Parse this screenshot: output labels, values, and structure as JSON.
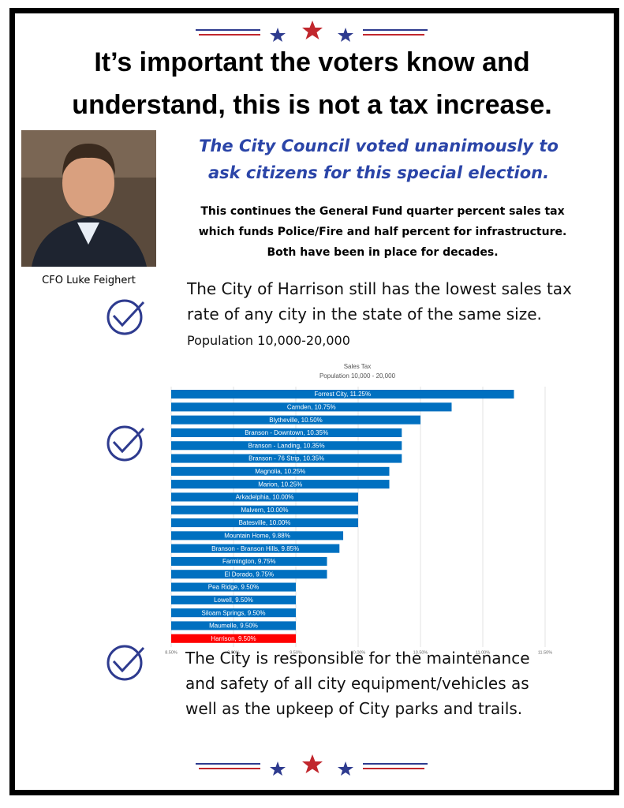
{
  "header": {
    "title_lines": [
      "It’s important the voters know and",
      "understand, this is not a tax increase."
    ]
  },
  "subtitle_lines": [
    "The City Council voted unanimously to",
    "ask citizens for this special election."
  ],
  "intro_lines": [
    "This continues the General Fund quarter percent sales tax",
    "which funds Police/Fire and half percent for infrastructure.",
    "Both have been in place for decades."
  ],
  "photo_caption": "CFO Luke Feighert",
  "points": [
    {
      "text": "The City of Harrison still has the lowest sales tax rate of any city in the state of the same size.",
      "note": "Population 10,000-20,000"
    },
    {
      "text": "The City is responsible for the maintenance and safety of all city equipment/vehicles as well as the upkeep of City parks and trails."
    }
  ],
  "chart_data": {
    "type": "hbar",
    "title": "Sales Tax",
    "subtitle": "Population 10,000 - 20,000",
    "values": [
      11.25,
      10.75,
      10.5,
      10.35,
      10.35,
      10.35,
      10.25,
      10.25,
      10,
      10,
      10,
      9.88,
      9.85,
      9.75,
      9.75,
      9.5,
      9.5,
      9.5,
      9.5,
      9.5
    ],
    "value_labels": [
      "Forrest City, 11.25%",
      "Camden, 10.75%",
      "Blytheville, 10.50%",
      "Branson - Downtown, 10.35%",
      "Branson - Landing, 10.35%",
      "Branson - 76 Strip, 10.35%",
      "Magnolia, 10.25%",
      "Marion, 10.25%",
      "Arkadelphia, 10.00%",
      "Malvern, 10.00%",
      "Batesville, 10.00%",
      "Mountain Home, 9.88%",
      "Branson - Branson Hills, 9.85%",
      "Farmington, 9.75%",
      "El Dorado, 9.75%",
      "Pea Ridge, 9.50%",
      "Lowell, 9.50%",
      "Siloam Springs, 9.50%",
      "Maumelle, 9.50%",
      "Harrison, 9.50%"
    ],
    "bar_colors": [
      "#0070c0",
      "#0070c0",
      "#0070c0",
      "#0070c0",
      "#0070c0",
      "#0070c0",
      "#0070c0",
      "#0070c0",
      "#0070c0",
      "#0070c0",
      "#0070c0",
      "#0070c0",
      "#0070c0",
      "#0070c0",
      "#0070c0",
      "#0070c0",
      "#0070c0",
      "#0070c0",
      "#0070c0",
      "#ff0000"
    ],
    "xlim": [
      8.5,
      11.5
    ],
    "xticks": [
      {
        "value": 8.5,
        "label": "8.50%"
      },
      {
        "value": 9,
        "label": "9.00%"
      },
      {
        "value": 9.5,
        "label": "9.50%"
      },
      {
        "value": 10,
        "label": "10.00%"
      },
      {
        "value": 10.5,
        "label": "10.50%"
      },
      {
        "value": 11,
        "label": "11.00%"
      },
      {
        "value": 11.5,
        "label": "11.50%"
      }
    ],
    "grid": true
  }
}
